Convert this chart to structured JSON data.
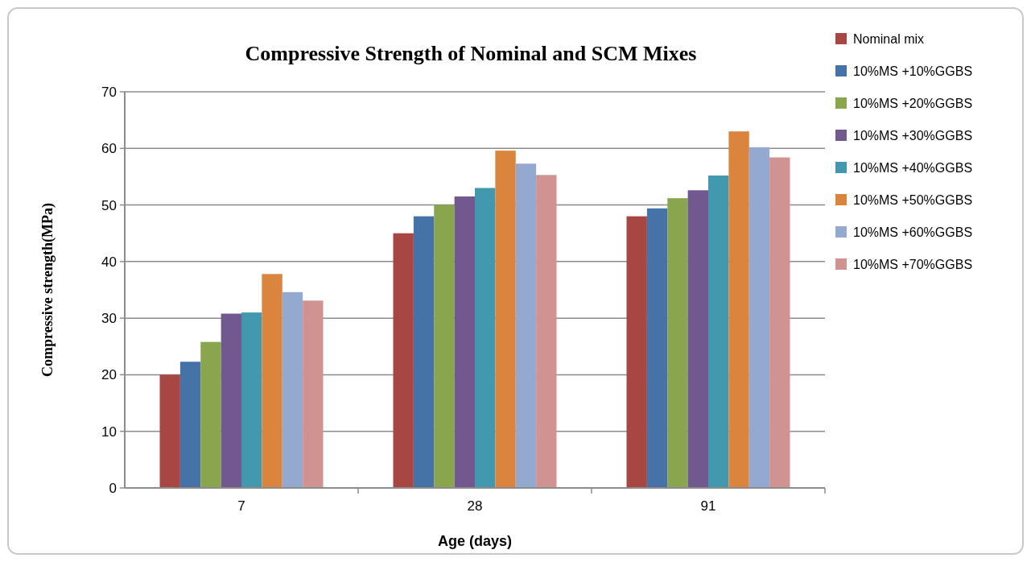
{
  "chart_data": {
    "type": "bar",
    "title": "Compressive Strength of  Nominal and SCM Mixes",
    "xlabel": "Age (days)",
    "ylabel": "Compressive strength(MPa)",
    "categories": [
      "7",
      "28",
      "91"
    ],
    "ylim": [
      0,
      70
    ],
    "yticks": [
      0,
      10,
      20,
      30,
      40,
      50,
      60,
      70
    ],
    "grid": "y",
    "legend": "right",
    "series": [
      {
        "name": "Nominal mix",
        "color": "#a84644",
        "values": [
          20,
          45,
          48
        ]
      },
      {
        "name": "10%MS +10%GGBS",
        "color": "#4572a7",
        "values": [
          22.3,
          48,
          49.4
        ]
      },
      {
        "name": "10%MS +20%GGBS",
        "color": "#89a54e",
        "values": [
          25.8,
          50,
          51.2
        ]
      },
      {
        "name": "10%MS +30%GGBS",
        "color": "#71588f",
        "values": [
          30.8,
          51.5,
          52.6
        ]
      },
      {
        "name": "10%MS +40%GGBS",
        "color": "#4198af",
        "values": [
          31,
          53,
          55.2
        ]
      },
      {
        "name": "10%MS +50%GGBS",
        "color": "#db843d",
        "values": [
          37.8,
          59.6,
          63
        ]
      },
      {
        "name": "10%MS +60%GGBS",
        "color": "#93a9cf",
        "values": [
          34.6,
          57.3,
          60.2
        ]
      },
      {
        "name": "10%MS +70%GGBS",
        "color": "#d19392",
        "values": [
          33.1,
          55.3,
          58.4
        ]
      }
    ]
  }
}
